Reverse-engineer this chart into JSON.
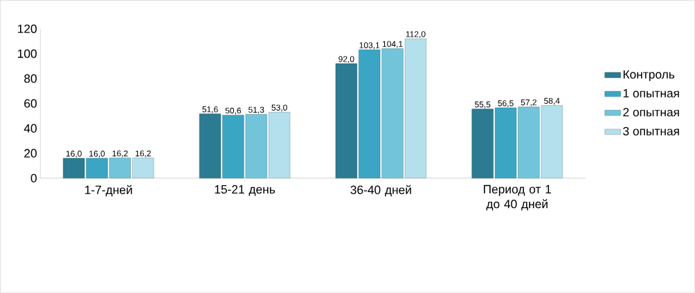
{
  "chart_data": {
    "type": "bar",
    "categories": [
      "1-7-дней",
      "15-21 день",
      "36-40 дней",
      "Период от 1 до 40 дней"
    ],
    "series": [
      {
        "name": "Контроль",
        "color": "#2b7b93",
        "values": [
          16.0,
          51.6,
          92.0,
          55.5
        ],
        "value_labels": [
          "16,0",
          "51,6",
          "92,0",
          "55,5"
        ]
      },
      {
        "name": "1 опытная",
        "color": "#3ba6c4",
        "values": [
          16.0,
          50.6,
          103.1,
          56.5
        ],
        "value_labels": [
          "16,0",
          "50,6",
          "103,1",
          "56,5"
        ]
      },
      {
        "name": "2 опытная",
        "color": "#72c4da",
        "values": [
          16.2,
          51.3,
          104.1,
          57.2
        ],
        "value_labels": [
          "16,2",
          "51,3",
          "104,1",
          "57,2"
        ]
      },
      {
        "name": "3 опытная",
        "color": "#b3e0ec",
        "values": [
          16.2,
          53.0,
          112.0,
          58.4
        ],
        "value_labels": [
          "16,2",
          "53,0",
          "112,0",
          "58,4"
        ]
      }
    ],
    "ylim": [
      0,
      120
    ],
    "yticks": [
      0,
      20,
      40,
      60,
      80,
      100,
      120
    ],
    "grid": false,
    "legend": "right"
  }
}
